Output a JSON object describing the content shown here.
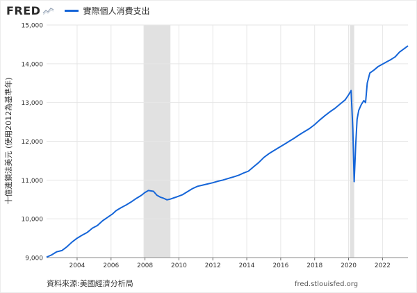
{
  "header": {
    "logo_text": "FRED",
    "logo_icon": "spark-line-icon",
    "series_label": "實際個人消費支出"
  },
  "footer": {
    "source": "資料來源:美國經濟分析局",
    "url": "fred.stlouisfed.org"
  },
  "colors": {
    "series": "#1565d8",
    "recession": "#e1e1e1",
    "grid": "#e6e6e6"
  },
  "chart_data": {
    "type": "line",
    "title": "",
    "ylabel": "十億連鎖法美元 (使用2012為基準年)",
    "xlabel": "",
    "xlim": [
      2002.2,
      2023.5
    ],
    "ylim": [
      9000,
      15000
    ],
    "yticks": [
      9000,
      10000,
      11000,
      12000,
      13000,
      14000,
      15000
    ],
    "ytick_labels": [
      "9,000",
      "10,000",
      "11,000",
      "12,000",
      "13,000",
      "14,000",
      "15,000"
    ],
    "xticks": [
      2004,
      2006,
      2008,
      2010,
      2012,
      2014,
      2016,
      2018,
      2020,
      2022
    ],
    "xtick_labels": [
      "2004",
      "2006",
      "2008",
      "2010",
      "2012",
      "2014",
      "2016",
      "2018",
      "2020",
      "2022"
    ],
    "grid": true,
    "recessions": [
      [
        2007.92,
        2009.5
      ],
      [
        2020.08,
        2020.33
      ]
    ],
    "series": [
      {
        "name": "實際個人消費支出",
        "points": [
          [
            2002.2,
            9010
          ],
          [
            2002.5,
            9070
          ],
          [
            2002.8,
            9150
          ],
          [
            2003.1,
            9180
          ],
          [
            2003.4,
            9280
          ],
          [
            2003.7,
            9400
          ],
          [
            2004.0,
            9500
          ],
          [
            2004.3,
            9580
          ],
          [
            2004.6,
            9650
          ],
          [
            2004.9,
            9760
          ],
          [
            2005.2,
            9830
          ],
          [
            2005.5,
            9950
          ],
          [
            2005.8,
            10040
          ],
          [
            2006.1,
            10130
          ],
          [
            2006.3,
            10210
          ],
          [
            2006.6,
            10290
          ],
          [
            2006.9,
            10360
          ],
          [
            2007.2,
            10440
          ],
          [
            2007.5,
            10530
          ],
          [
            2007.8,
            10610
          ],
          [
            2008.0,
            10680
          ],
          [
            2008.2,
            10730
          ],
          [
            2008.5,
            10710
          ],
          [
            2008.7,
            10610
          ],
          [
            2008.9,
            10560
          ],
          [
            2009.1,
            10530
          ],
          [
            2009.3,
            10490
          ],
          [
            2009.5,
            10510
          ],
          [
            2009.7,
            10540
          ],
          [
            2009.9,
            10570
          ],
          [
            2010.2,
            10620
          ],
          [
            2010.5,
            10700
          ],
          [
            2010.8,
            10780
          ],
          [
            2011.1,
            10840
          ],
          [
            2011.4,
            10870
          ],
          [
            2011.7,
            10900
          ],
          [
            2012.0,
            10930
          ],
          [
            2012.3,
            10970
          ],
          [
            2012.6,
            11000
          ],
          [
            2012.9,
            11040
          ],
          [
            2013.2,
            11080
          ],
          [
            2013.5,
            11120
          ],
          [
            2013.8,
            11180
          ],
          [
            2014.1,
            11230
          ],
          [
            2014.4,
            11340
          ],
          [
            2014.7,
            11450
          ],
          [
            2015.0,
            11580
          ],
          [
            2015.3,
            11680
          ],
          [
            2015.6,
            11760
          ],
          [
            2015.9,
            11840
          ],
          [
            2016.2,
            11920
          ],
          [
            2016.5,
            12000
          ],
          [
            2016.8,
            12080
          ],
          [
            2017.1,
            12170
          ],
          [
            2017.4,
            12250
          ],
          [
            2017.7,
            12330
          ],
          [
            2018.0,
            12430
          ],
          [
            2018.3,
            12550
          ],
          [
            2018.6,
            12660
          ],
          [
            2018.9,
            12760
          ],
          [
            2019.2,
            12850
          ],
          [
            2019.5,
            12960
          ],
          [
            2019.8,
            13070
          ],
          [
            2020.0,
            13200
          ],
          [
            2020.15,
            13310
          ],
          [
            2020.25,
            12300
          ],
          [
            2020.33,
            10960
          ],
          [
            2020.42,
            11900
          ],
          [
            2020.5,
            12570
          ],
          [
            2020.6,
            12800
          ],
          [
            2020.75,
            12950
          ],
          [
            2020.9,
            13050
          ],
          [
            2021.0,
            13000
          ],
          [
            2021.1,
            13500
          ],
          [
            2021.25,
            13760
          ],
          [
            2021.5,
            13840
          ],
          [
            2021.75,
            13930
          ],
          [
            2022.0,
            13990
          ],
          [
            2022.25,
            14050
          ],
          [
            2022.5,
            14110
          ],
          [
            2022.75,
            14180
          ],
          [
            2023.0,
            14300
          ],
          [
            2023.25,
            14380
          ],
          [
            2023.5,
            14460
          ]
        ]
      }
    ]
  }
}
